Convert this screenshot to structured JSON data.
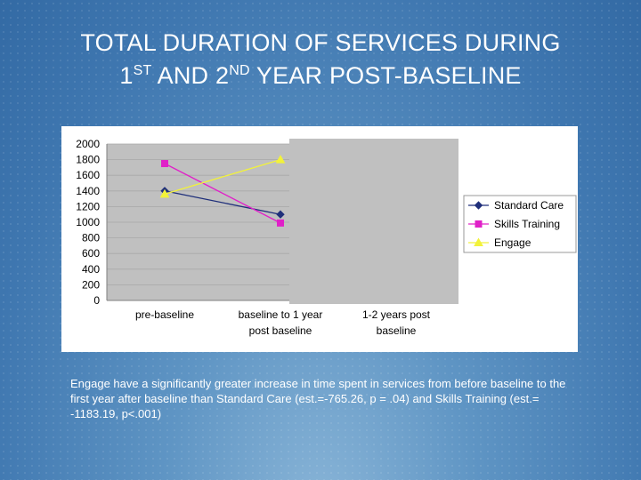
{
  "slide": {
    "title_line1": "TOTAL DURATION OF SERVICES DURING",
    "title_line2_a": "1",
    "title_line2_sup1": "ST",
    "title_line2_b": " AND 2",
    "title_line2_sup2": "ND",
    "title_line2_c": " YEAR POST-BASELINE",
    "caption": "Engage have a significantly greater increase in time spent in services from before baseline to the first year after baseline than Standard Care (est.=-765.26, p = .04) and Skills Training (est.= -1183.19, p<.001)"
  },
  "chart_data": {
    "type": "line",
    "title": "",
    "xlabel": "",
    "ylabel": "",
    "ylim": [
      0,
      2000
    ],
    "yticks": [
      "0",
      "200",
      "400",
      "600",
      "800",
      "1000",
      "1200",
      "1400",
      "1600",
      "1800",
      "2000"
    ],
    "categories": [
      [
        "pre-baseline"
      ],
      [
        "baseline to 1 year",
        "post baseline"
      ],
      [
        "1-2 years post",
        "baseline"
      ]
    ],
    "grid": true,
    "legend_position": "right",
    "series": [
      {
        "name": "Standard Care",
        "color": "#1f2f7a",
        "marker": "diamond",
        "values": [
          1400,
          1100,
          null
        ]
      },
      {
        "name": "Skills Training",
        "color": "#e020c8",
        "marker": "square",
        "values": [
          1750,
          990,
          null
        ]
      },
      {
        "name": "Engage",
        "color": "#f2f23a",
        "marker": "triangle",
        "values": [
          1360,
          1800,
          null
        ]
      }
    ]
  }
}
